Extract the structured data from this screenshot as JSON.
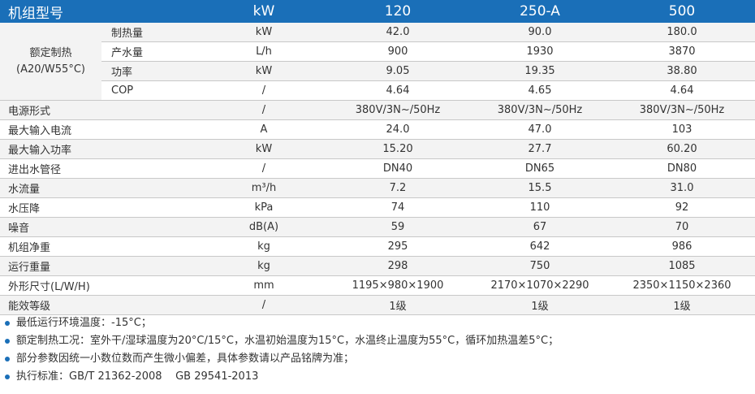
{
  "colors": {
    "header_bg": "#1a6fb8",
    "bullet": "#1a6fb8",
    "row_alt": "#f3f3f3",
    "grid": "#c8c8c8"
  },
  "header": {
    "name": "机组型号",
    "unit": "kW",
    "models": [
      "120",
      "250-A",
      "500"
    ]
  },
  "heating_group": {
    "label_line1": "额定制热",
    "label_line2": "(A20/W55°C)",
    "rows": [
      {
        "name": "制热量",
        "unit": "kW",
        "values": [
          "42.0",
          "90.0",
          "180.0"
        ]
      },
      {
        "name": "产水量",
        "unit": "L/h",
        "values": [
          "900",
          "1930",
          "3870"
        ]
      },
      {
        "name": "功率",
        "unit": "kW",
        "values": [
          "9.05",
          "19.35",
          "38.80"
        ]
      },
      {
        "name": "COP",
        "unit": "/",
        "values": [
          "4.64",
          "4.65",
          "4.64"
        ]
      }
    ]
  },
  "rows": [
    {
      "name": "电源形式",
      "unit": "/",
      "values": [
        "380V/3N~/50Hz",
        "380V/3N~/50Hz",
        "380V/3N~/50Hz"
      ]
    },
    {
      "name": "最大输入电流",
      "unit": "A",
      "values": [
        "24.0",
        "47.0",
        "103"
      ]
    },
    {
      "name": "最大输入功率",
      "unit": "kW",
      "values": [
        "15.20",
        "27.7",
        "60.20"
      ]
    },
    {
      "name": "进出水管径",
      "unit": "/",
      "values": [
        "DN40",
        "DN65",
        "DN80"
      ]
    },
    {
      "name": "水流量",
      "unit": "m³/h",
      "values": [
        "7.2",
        "15.5",
        "31.0"
      ]
    },
    {
      "name": "水压降",
      "unit": "kPa",
      "values": [
        "74",
        "110",
        "92"
      ]
    },
    {
      "name": "噪音",
      "unit": "dB(A)",
      "values": [
        "59",
        "67",
        "70"
      ]
    },
    {
      "name": "机组净重",
      "unit": "kg",
      "values": [
        "295",
        "642",
        "986"
      ]
    },
    {
      "name": "运行重量",
      "unit": "kg",
      "values": [
        "298",
        "750",
        "1085"
      ]
    },
    {
      "name": "外形尺寸(L/W/H)",
      "unit": "mm",
      "values": [
        "1195×980×1900",
        "2170×1070×2290",
        "2350×1150×2360"
      ]
    },
    {
      "name": "能效等级",
      "unit": "/",
      "values": [
        "1级",
        "1级",
        "1级"
      ]
    }
  ],
  "notes": [
    "最低运行环境温度：-15°C；",
    "额定制热工况：室外干/湿球温度为20°C/15°C，水温初始温度为15°C，水温终止温度为55°C，循环加热温差5°C；",
    "部分参数因统一小数位数而产生微小偏差，具体参数请以产品铭牌为准；",
    "执行标准：GB/T 21362-2008    GB 29541-2013"
  ]
}
